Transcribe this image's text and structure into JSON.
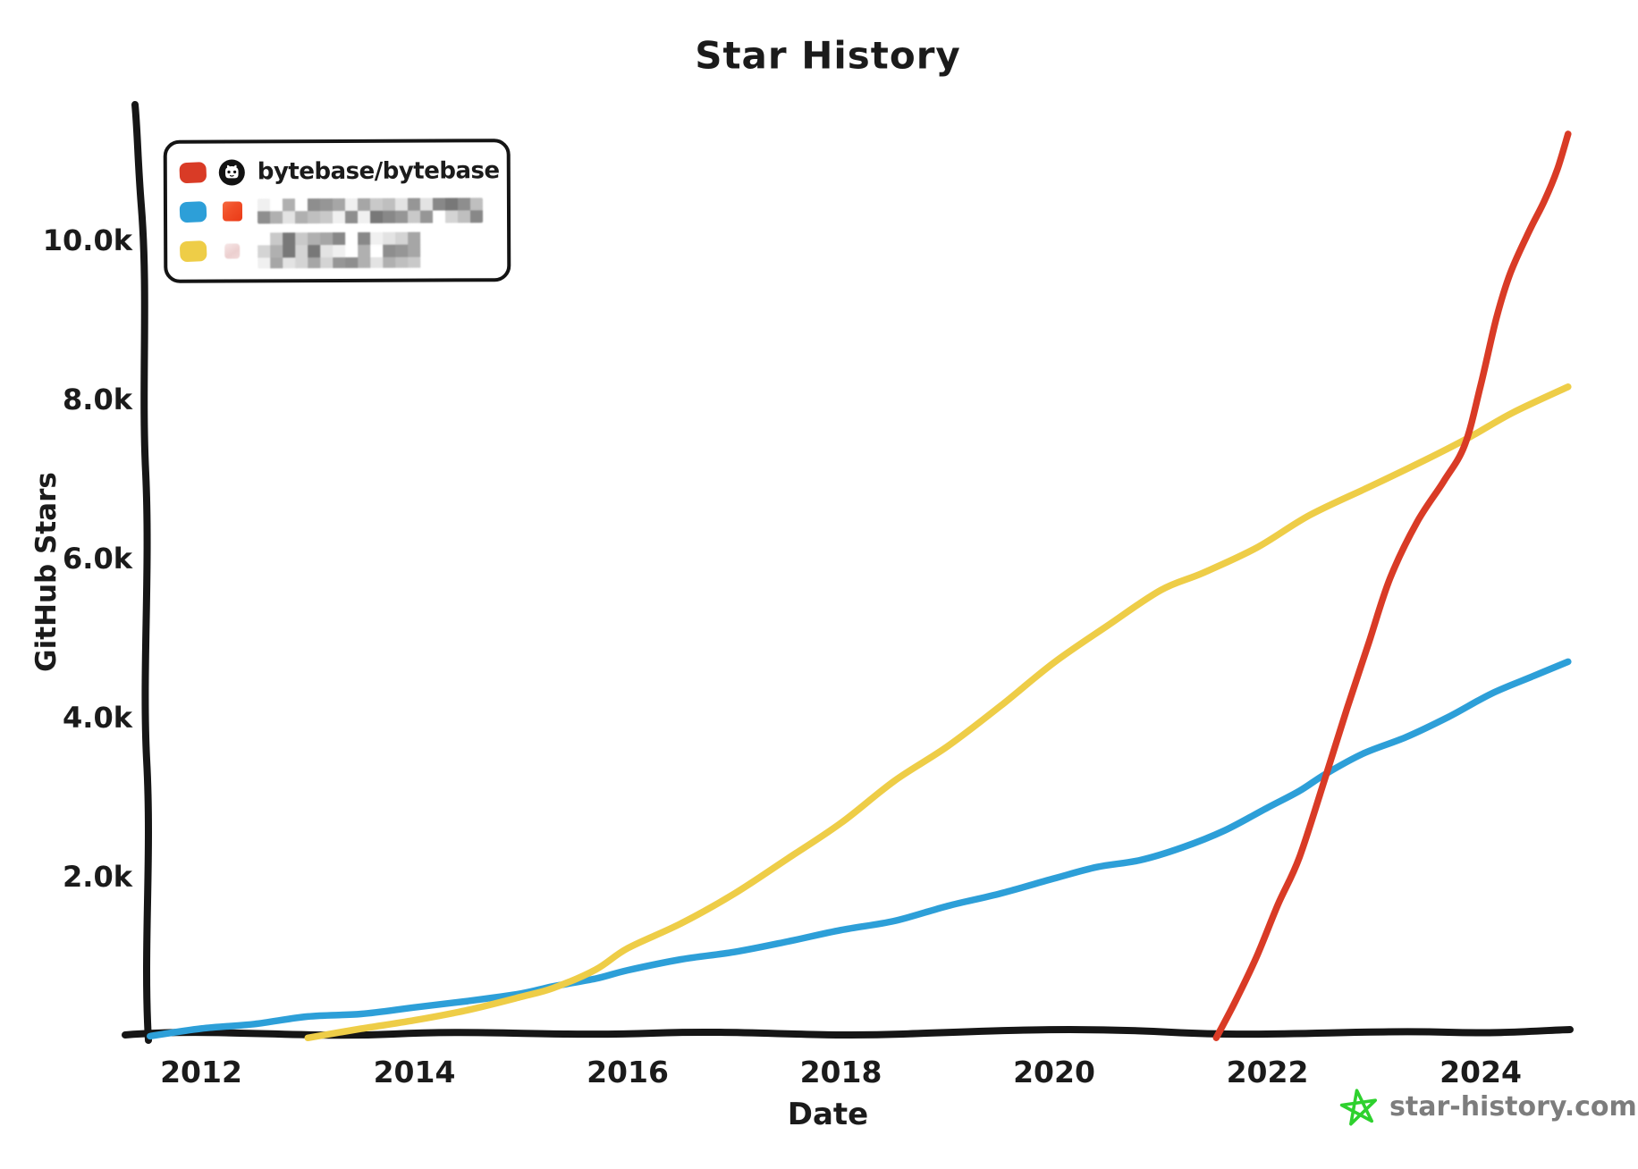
{
  "title": "Star History",
  "axes": {
    "x_label": "Date",
    "y_label": "GitHub Stars",
    "x_ticks": [
      {
        "label": "2012",
        "year": 2012
      },
      {
        "label": "2014",
        "year": 2014
      },
      {
        "label": "2016",
        "year": 2016
      },
      {
        "label": "2018",
        "year": 2018
      },
      {
        "label": "2020",
        "year": 2020
      },
      {
        "label": "2022",
        "year": 2022
      },
      {
        "label": "2024",
        "year": 2024
      }
    ],
    "y_ticks": [
      {
        "label": "2.0k",
        "value": 2000
      },
      {
        "label": "4.0k",
        "value": 4000
      },
      {
        "label": "6.0k",
        "value": 6000
      },
      {
        "label": "8.0k",
        "value": 8000
      },
      {
        "label": "10.0k",
        "value": 10000
      }
    ]
  },
  "legend": {
    "items": [
      {
        "label": "bytebase/bytebase",
        "swatch_color": "#d93b26",
        "icon": "github-logo",
        "redacted": false
      },
      {
        "label": "",
        "swatch_color": "#2d9fd8",
        "icon": "red-avatar",
        "redacted": true
      },
      {
        "label": "",
        "swatch_color": "#eecd47",
        "icon": "pink-avatar",
        "redacted": true
      }
    ]
  },
  "watermark": {
    "text": "star-history.com",
    "star_color": "#2ed12e",
    "text_color": "#7d7d7d"
  },
  "chart_data": {
    "type": "line",
    "title": "Star History",
    "xlabel": "Date",
    "ylabel": "GitHub Stars",
    "x_range": [
      2011.5,
      2024.85
    ],
    "y_range": [
      0,
      11600
    ],
    "grid": false,
    "legend_position": "top-left",
    "series": [
      {
        "name": "bytebase/bytebase",
        "color": "#d93b26",
        "redacted": false,
        "data": [
          [
            2021.52,
            0
          ],
          [
            2021.7,
            450
          ],
          [
            2021.9,
            1000
          ],
          [
            2022.1,
            1650
          ],
          [
            2022.3,
            2250
          ],
          [
            2022.55,
            3300
          ],
          [
            2022.75,
            4150
          ],
          [
            2022.95,
            4950
          ],
          [
            2023.15,
            5750
          ],
          [
            2023.4,
            6450
          ],
          [
            2023.65,
            6980
          ],
          [
            2023.85,
            7450
          ],
          [
            2024.0,
            8200
          ],
          [
            2024.15,
            9050
          ],
          [
            2024.28,
            9600
          ],
          [
            2024.45,
            10100
          ],
          [
            2024.6,
            10500
          ],
          [
            2024.72,
            10900
          ],
          [
            2024.82,
            11350
          ]
        ]
      },
      {
        "name": "",
        "color": "#2d9fd8",
        "redacted": true,
        "data": [
          [
            2011.52,
            0
          ],
          [
            2012,
            100
          ],
          [
            2012.5,
            170
          ],
          [
            2013,
            240
          ],
          [
            2013.5,
            300
          ],
          [
            2014,
            360
          ],
          [
            2014.5,
            450
          ],
          [
            2015,
            550
          ],
          [
            2015.3,
            620
          ],
          [
            2015.7,
            730
          ],
          [
            2016,
            850
          ],
          [
            2016.5,
            960
          ],
          [
            2017,
            1070
          ],
          [
            2017.5,
            1200
          ],
          [
            2018,
            1330
          ],
          [
            2018.5,
            1470
          ],
          [
            2019,
            1630
          ],
          [
            2019.5,
            1810
          ],
          [
            2020,
            1990
          ],
          [
            2020.4,
            2120
          ],
          [
            2020.8,
            2230
          ],
          [
            2021.2,
            2380
          ],
          [
            2021.6,
            2580
          ],
          [
            2022,
            2890
          ],
          [
            2022.3,
            3100
          ],
          [
            2022.55,
            3300
          ],
          [
            2022.9,
            3550
          ],
          [
            2023.3,
            3780
          ],
          [
            2023.7,
            4020
          ],
          [
            2024.1,
            4300
          ],
          [
            2024.5,
            4550
          ],
          [
            2024.82,
            4720
          ]
        ]
      },
      {
        "name": "",
        "color": "#eecd47",
        "redacted": true,
        "data": [
          [
            2013.0,
            0
          ],
          [
            2013.5,
            90
          ],
          [
            2014,
            210
          ],
          [
            2014.5,
            340
          ],
          [
            2015,
            490
          ],
          [
            2015.3,
            620
          ],
          [
            2015.7,
            850
          ],
          [
            2016,
            1100
          ],
          [
            2016.5,
            1430
          ],
          [
            2017,
            1800
          ],
          [
            2017.5,
            2230
          ],
          [
            2018,
            2700
          ],
          [
            2018.5,
            3200
          ],
          [
            2019,
            3660
          ],
          [
            2019.5,
            4160
          ],
          [
            2020,
            4700
          ],
          [
            2020.5,
            5180
          ],
          [
            2021,
            5600
          ],
          [
            2021.4,
            5840
          ],
          [
            2021.9,
            6150
          ],
          [
            2022.4,
            6550
          ],
          [
            2023,
            6950
          ],
          [
            2023.5,
            7250
          ],
          [
            2023.9,
            7550
          ],
          [
            2024.3,
            7850
          ],
          [
            2024.82,
            8160
          ]
        ]
      }
    ]
  }
}
